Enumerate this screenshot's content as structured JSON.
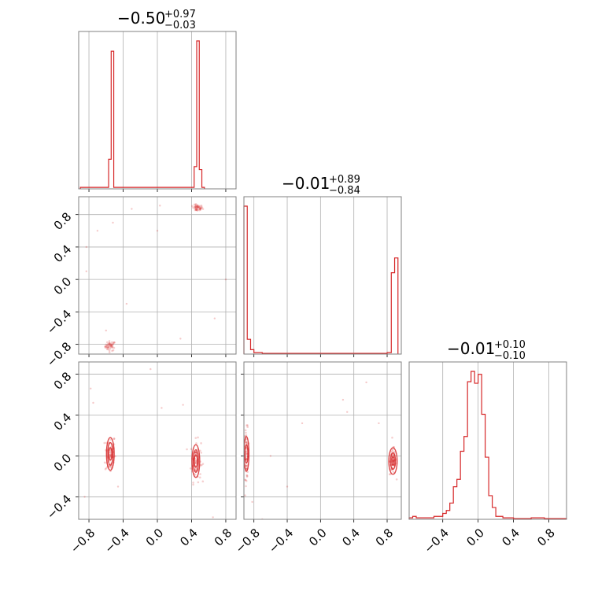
{
  "chart_data": [
    {
      "type": "histogram",
      "panel": "marginal-1",
      "title_value": "−0.50",
      "title_plus": "+0.97",
      "title_minus": "−0.03",
      "xlim": [
        -0.92,
        0.92
      ],
      "bins": [
        {
          "x0": -0.9,
          "x1": -0.86,
          "h": 0.01
        },
        {
          "x0": -0.6,
          "x1": -0.57,
          "h": 0.01
        },
        {
          "x0": -0.57,
          "x1": -0.54,
          "h": 0.2
        },
        {
          "x0": -0.54,
          "x1": -0.51,
          "h": 0.93
        },
        {
          "x0": -0.51,
          "x1": -0.48,
          "h": 0.01
        },
        {
          "x0": 0.4,
          "x1": 0.43,
          "h": 0.01
        },
        {
          "x0": 0.43,
          "x1": 0.46,
          "h": 0.15
        },
        {
          "x0": 0.46,
          "x1": 0.49,
          "h": 1.0
        },
        {
          "x0": 0.49,
          "x1": 0.52,
          "h": 0.13
        },
        {
          "x0": 0.52,
          "x1": 0.55,
          "h": 0.01
        }
      ]
    },
    {
      "type": "histogram",
      "panel": "marginal-2",
      "title_value": "−0.01",
      "title_plus": "+0.89",
      "title_minus": "−0.84",
      "xlim": [
        -0.92,
        0.97
      ],
      "bins": [
        {
          "x0": -0.92,
          "x1": -0.88,
          "h": 1.0
        },
        {
          "x0": -0.88,
          "x1": -0.84,
          "h": 0.1
        },
        {
          "x0": -0.84,
          "x1": -0.8,
          "h": 0.03
        },
        {
          "x0": -0.8,
          "x1": -0.7,
          "h": 0.01
        },
        {
          "x0": -0.7,
          "x1": 0.8,
          "h": 0.005
        },
        {
          "x0": 0.8,
          "x1": 0.85,
          "h": 0.01
        },
        {
          "x0": 0.85,
          "x1": 0.89,
          "h": 0.55
        },
        {
          "x0": 0.89,
          "x1": 0.93,
          "h": 0.65
        }
      ]
    },
    {
      "type": "histogram",
      "panel": "marginal-3",
      "title_value": "−0.01",
      "title_plus": "+0.10",
      "title_minus": "−0.10",
      "xlim": [
        -0.78,
        1.0
      ],
      "bins": [
        {
          "x0": -0.78,
          "x1": -0.74,
          "h": 0.01
        },
        {
          "x0": -0.74,
          "x1": -0.7,
          "h": 0.02
        },
        {
          "x0": -0.7,
          "x1": -0.5,
          "h": 0.01
        },
        {
          "x0": -0.5,
          "x1": -0.4,
          "h": 0.02
        },
        {
          "x0": -0.4,
          "x1": -0.36,
          "h": 0.04
        },
        {
          "x0": -0.36,
          "x1": -0.32,
          "h": 0.06
        },
        {
          "x0": -0.32,
          "x1": -0.28,
          "h": 0.11
        },
        {
          "x0": -0.28,
          "x1": -0.24,
          "h": 0.22
        },
        {
          "x0": -0.24,
          "x1": -0.2,
          "h": 0.27
        },
        {
          "x0": -0.2,
          "x1": -0.16,
          "h": 0.46
        },
        {
          "x0": -0.16,
          "x1": -0.12,
          "h": 0.56
        },
        {
          "x0": -0.12,
          "x1": -0.08,
          "h": 0.93
        },
        {
          "x0": -0.08,
          "x1": -0.04,
          "h": 1.0
        },
        {
          "x0": -0.04,
          "x1": 0.0,
          "h": 0.92
        },
        {
          "x0": 0.0,
          "x1": 0.04,
          "h": 0.98
        },
        {
          "x0": 0.04,
          "x1": 0.08,
          "h": 0.71
        },
        {
          "x0": 0.08,
          "x1": 0.12,
          "h": 0.42
        },
        {
          "x0": 0.12,
          "x1": 0.16,
          "h": 0.16
        },
        {
          "x0": 0.16,
          "x1": 0.2,
          "h": 0.08
        },
        {
          "x0": 0.2,
          "x1": 0.28,
          "h": 0.02
        },
        {
          "x0": 0.28,
          "x1": 0.4,
          "h": 0.01
        },
        {
          "x0": 0.4,
          "x1": 0.6,
          "h": 0.005
        },
        {
          "x0": 0.6,
          "x1": 0.75,
          "h": 0.01
        },
        {
          "x0": 0.75,
          "x1": 1.0,
          "h": 0.005
        }
      ]
    },
    {
      "type": "scatter",
      "panel": "joint-2-1",
      "xlim": [
        -0.92,
        0.92
      ],
      "ylim": [
        -0.92,
        1.02
      ],
      "clusters": [
        {
          "cx": -0.55,
          "cy": -0.82,
          "sx": 0.03,
          "sy": 0.03,
          "n": 50
        },
        {
          "cx": 0.47,
          "cy": 0.88,
          "sx": 0.03,
          "sy": 0.02,
          "n": 50
        }
      ],
      "stray": [
        [
          -0.3,
          0.87
        ],
        [
          -0.7,
          0.6
        ],
        [
          -0.83,
          0.1
        ],
        [
          -0.52,
          0.7
        ],
        [
          0.0,
          0.6
        ],
        [
          -0.6,
          -0.63
        ],
        [
          0.27,
          -0.73
        ],
        [
          -0.36,
          -0.3
        ],
        [
          0.67,
          -0.48
        ],
        [
          0.03,
          0.91
        ],
        [
          -0.83,
          0.4
        ],
        [
          0.8,
          0.0
        ]
      ]
    },
    {
      "type": "scatter",
      "panel": "joint-3-1",
      "xlim": [
        -0.92,
        0.92
      ],
      "ylim": [
        -0.62,
        0.92
      ],
      "clusters": [
        {
          "cx": -0.55,
          "cy": 0.02,
          "sx": 0.03,
          "sy": 0.1,
          "n": 70
        },
        {
          "cx": 0.45,
          "cy": -0.05,
          "sx": 0.03,
          "sy": 0.1,
          "n": 70
        }
      ],
      "contours": [
        {
          "cx": -0.55,
          "cy": 0.02,
          "rx": [
            0.045,
            0.03,
            0.018
          ],
          "ry": [
            0.16,
            0.11,
            0.06
          ]
        },
        {
          "cx": 0.45,
          "cy": -0.05,
          "rx": [
            0.045,
            0.03,
            0.018
          ],
          "ry": [
            0.16,
            0.11,
            0.06
          ]
        }
      ],
      "stray": [
        [
          -0.78,
          0.66
        ],
        [
          -0.75,
          0.52
        ],
        [
          0.05,
          0.47
        ],
        [
          -0.08,
          0.85
        ],
        [
          0.65,
          -0.6
        ],
        [
          -0.46,
          -0.3
        ],
        [
          0.3,
          0.5
        ],
        [
          -0.85,
          -0.4
        ]
      ]
    },
    {
      "type": "scatter",
      "panel": "joint-3-2",
      "xlim": [
        -0.92,
        0.97
      ],
      "ylim": [
        -0.62,
        0.92
      ],
      "clusters": [
        {
          "cx": -0.89,
          "cy": 0.02,
          "sx": 0.015,
          "sy": 0.12,
          "n": 70
        },
        {
          "cx": 0.87,
          "cy": -0.05,
          "sx": 0.02,
          "sy": 0.07,
          "n": 70
        }
      ],
      "contours": [
        {
          "cx": -0.89,
          "cy": 0.02,
          "rx": [
            0.03,
            0.018
          ],
          "ry": [
            0.17,
            0.09
          ]
        },
        {
          "cx": 0.87,
          "cy": -0.05,
          "rx": [
            0.05,
            0.03,
            0.015
          ],
          "ry": [
            0.13,
            0.08,
            0.04
          ]
        }
      ],
      "stray": [
        [
          -0.82,
          -0.45
        ],
        [
          -0.7,
          -0.62
        ],
        [
          -0.6,
          0.0
        ],
        [
          -0.22,
          0.32
        ],
        [
          0.27,
          0.55
        ],
        [
          0.32,
          0.43
        ],
        [
          0.55,
          0.72
        ],
        [
          0.7,
          0.32
        ],
        [
          -0.4,
          -0.3
        ]
      ]
    }
  ],
  "colors": {
    "accent": "#d62728",
    "grid": "#b0b0b0",
    "frame": "#808080"
  },
  "ticks": {
    "axis_x_left": [
      "−0.8",
      "−0.4",
      "0.0",
      "0.4",
      "0.8"
    ],
    "axis_x_mid": [
      "−0.8",
      "−0.4",
      "0.0",
      "0.4",
      "0.8"
    ],
    "axis_x_right": [
      "−0.4",
      "0.0",
      "0.4",
      "0.8"
    ],
    "axis_y_row2": [
      "0.8",
      "0.4",
      "0.0",
      "−0.4",
      "−0.8"
    ],
    "axis_y_row3": [
      "0.8",
      "0.4",
      "0.0",
      "−0.4"
    ]
  }
}
